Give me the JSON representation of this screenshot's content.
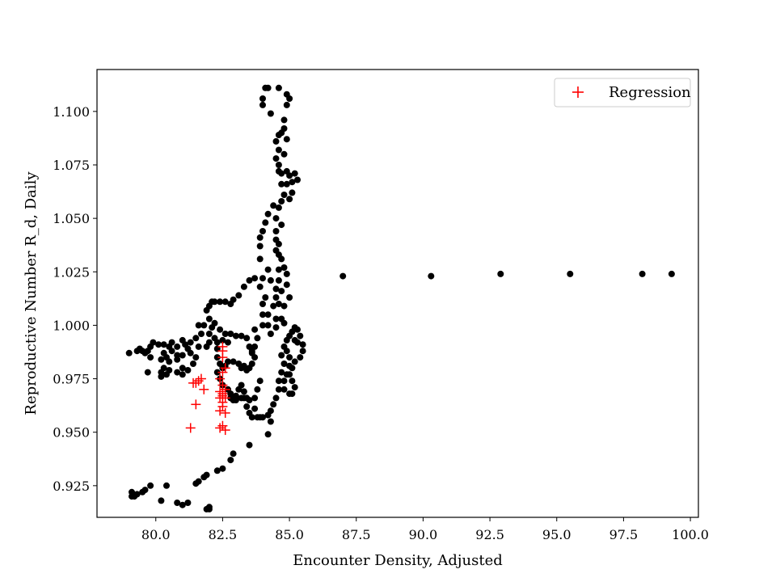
{
  "chart_data": {
    "type": "scatter",
    "title": "",
    "xlabel": "Encounter Density, Adjusted",
    "ylabel": "Reproductive Number R_d, Daily",
    "xlim": [
      77.8,
      100.3
    ],
    "ylim": [
      0.9102,
      1.1196
    ],
    "xticks": [
      "80.0",
      "82.5",
      "85.0",
      "87.5",
      "90.0",
      "92.5",
      "95.0",
      "97.5",
      "100.0"
    ],
    "yticks": [
      "0.925",
      "0.950",
      "0.975",
      "1.000",
      "1.025",
      "1.050",
      "1.075",
      "1.100"
    ],
    "grid": false,
    "legend_position": "top-right",
    "series": [
      {
        "name": "",
        "marker": "circle",
        "color": "#000000",
        "points": [
          [
            84.1,
            1.111
          ],
          [
            84.2,
            1.111
          ],
          [
            84.6,
            1.111
          ],
          [
            84.0,
            1.106
          ],
          [
            84.0,
            1.103
          ],
          [
            84.9,
            1.108
          ],
          [
            85.0,
            1.106
          ],
          [
            84.9,
            1.103
          ],
          [
            84.8,
            1.096
          ],
          [
            84.3,
            1.099
          ],
          [
            84.8,
            1.092
          ],
          [
            84.7,
            1.09
          ],
          [
            84.6,
            1.089
          ],
          [
            84.9,
            1.087
          ],
          [
            84.5,
            1.086
          ],
          [
            84.6,
            1.082
          ],
          [
            84.8,
            1.08
          ],
          [
            84.5,
            1.078
          ],
          [
            84.6,
            1.075
          ],
          [
            84.6,
            1.072
          ],
          [
            84.7,
            1.071
          ],
          [
            84.9,
            1.072
          ],
          [
            85.0,
            1.07
          ],
          [
            85.2,
            1.071
          ],
          [
            85.1,
            1.067
          ],
          [
            85.3,
            1.068
          ],
          [
            84.7,
            1.066
          ],
          [
            84.9,
            1.066
          ],
          [
            85.1,
            1.062
          ],
          [
            85.0,
            1.059
          ],
          [
            84.8,
            1.061
          ],
          [
            84.7,
            1.058
          ],
          [
            84.6,
            1.055
          ],
          [
            84.4,
            1.056
          ],
          [
            84.2,
            1.052
          ],
          [
            84.5,
            1.05
          ],
          [
            84.1,
            1.048
          ],
          [
            84.7,
            1.047
          ],
          [
            84.5,
            1.044
          ],
          [
            84.0,
            1.044
          ],
          [
            84.5,
            1.04
          ],
          [
            84.6,
            1.038
          ],
          [
            83.9,
            1.041
          ],
          [
            84.5,
            1.035
          ],
          [
            83.9,
            1.037
          ],
          [
            84.6,
            1.033
          ],
          [
            84.7,
            1.031
          ],
          [
            84.8,
            1.027
          ],
          [
            84.6,
            1.026
          ],
          [
            83.9,
            1.031
          ],
          [
            84.2,
            1.026
          ],
          [
            84.9,
            1.024
          ],
          [
            84.6,
            1.021
          ],
          [
            84.5,
            1.017
          ],
          [
            84.7,
            1.016
          ],
          [
            84.9,
            1.019
          ],
          [
            85.0,
            1.013
          ],
          [
            84.5,
            1.013
          ],
          [
            84.6,
            1.01
          ],
          [
            84.3,
            1.021
          ],
          [
            84.0,
            1.022
          ],
          [
            84.8,
            1.009
          ],
          [
            84.4,
            1.009
          ],
          [
            84.2,
            1.005
          ],
          [
            84.5,
            1.003
          ],
          [
            84.7,
            1.003
          ],
          [
            84.2,
            1.0
          ],
          [
            84.5,
            0.999
          ],
          [
            84.8,
            1.001
          ],
          [
            84.3,
            0.996
          ],
          [
            84.0,
            1.0
          ],
          [
            84.0,
            1.005
          ],
          [
            84.0,
            1.01
          ],
          [
            84.1,
            1.013
          ],
          [
            83.9,
            1.018
          ],
          [
            83.7,
            1.022
          ],
          [
            83.5,
            1.021
          ],
          [
            83.3,
            1.018
          ],
          [
            83.1,
            1.014
          ],
          [
            82.9,
            1.012
          ],
          [
            82.8,
            1.01
          ],
          [
            82.6,
            1.011
          ],
          [
            82.4,
            1.011
          ],
          [
            82.2,
            1.011
          ],
          [
            82.1,
            1.011
          ],
          [
            82.0,
            1.009
          ],
          [
            81.9,
            1.007
          ],
          [
            82.0,
            1.003
          ],
          [
            81.8,
            1.0
          ],
          [
            81.6,
            1.0
          ],
          [
            81.7,
            0.996
          ],
          [
            81.5,
            0.994
          ],
          [
            81.3,
            0.992
          ],
          [
            81.1,
            0.991
          ],
          [
            81.0,
            0.993
          ],
          [
            81.2,
            0.989
          ],
          [
            81.0,
            0.986
          ],
          [
            80.8,
            0.986
          ],
          [
            80.6,
            0.988
          ],
          [
            80.8,
            0.99
          ],
          [
            80.6,
            0.992
          ],
          [
            80.5,
            0.99
          ],
          [
            80.3,
            0.991
          ],
          [
            80.1,
            0.991
          ],
          [
            79.9,
            0.992
          ],
          [
            79.8,
            0.99
          ],
          [
            79.7,
            0.988
          ],
          [
            79.5,
            0.988
          ],
          [
            79.4,
            0.989
          ],
          [
            79.3,
            0.988
          ],
          [
            79.0,
            0.987
          ],
          [
            79.6,
            0.987
          ],
          [
            79.8,
            0.985
          ],
          [
            80.2,
            0.984
          ],
          [
            80.3,
            0.987
          ],
          [
            80.4,
            0.985
          ],
          [
            80.5,
            0.983
          ],
          [
            80.8,
            0.984
          ],
          [
            81.0,
            0.98
          ],
          [
            81.2,
            0.979
          ],
          [
            81.0,
            0.977
          ],
          [
            80.8,
            0.978
          ],
          [
            80.5,
            0.979
          ],
          [
            80.3,
            0.98
          ],
          [
            80.2,
            0.978
          ],
          [
            80.2,
            0.976
          ],
          [
            80.4,
            0.977
          ],
          [
            79.7,
            0.978
          ],
          [
            81.4,
            0.982
          ],
          [
            81.5,
            0.985
          ],
          [
            81.3,
            0.987
          ],
          [
            81.6,
            0.99
          ],
          [
            81.9,
            0.99
          ],
          [
            82.0,
            0.992
          ],
          [
            82.2,
            0.994
          ],
          [
            82.0,
            0.996
          ],
          [
            82.1,
            0.999
          ],
          [
            82.2,
            1.001
          ],
          [
            82.4,
            0.998
          ],
          [
            82.6,
            0.996
          ],
          [
            82.8,
            0.996
          ],
          [
            83.0,
            0.995
          ],
          [
            83.2,
            0.995
          ],
          [
            83.4,
            0.994
          ],
          [
            83.5,
            0.99
          ],
          [
            83.6,
            0.988
          ],
          [
            83.7,
            0.985
          ],
          [
            83.6,
            0.982
          ],
          [
            83.5,
            0.98
          ],
          [
            83.4,
            0.979
          ],
          [
            83.2,
            0.98
          ],
          [
            83.1,
            0.982
          ],
          [
            82.9,
            0.983
          ],
          [
            82.7,
            0.983
          ],
          [
            82.6,
            0.981
          ],
          [
            82.5,
            0.98
          ],
          [
            82.4,
            0.982
          ],
          [
            82.3,
            0.985
          ],
          [
            82.3,
            0.989
          ],
          [
            82.3,
            0.992
          ],
          [
            82.5,
            0.993
          ],
          [
            82.7,
            0.992
          ],
          [
            82.3,
            0.978
          ],
          [
            82.4,
            0.975
          ],
          [
            82.5,
            0.972
          ],
          [
            82.7,
            0.97
          ],
          [
            82.8,
            0.968
          ],
          [
            82.9,
            0.965
          ],
          [
            83.0,
            0.967
          ],
          [
            83.1,
            0.97
          ],
          [
            83.2,
            0.972
          ],
          [
            83.3,
            0.969
          ],
          [
            83.3,
            0.966
          ],
          [
            83.4,
            0.962
          ],
          [
            83.5,
            0.959
          ],
          [
            83.6,
            0.957
          ],
          [
            83.8,
            0.957
          ],
          [
            84.0,
            0.957
          ],
          [
            84.2,
            0.958
          ],
          [
            84.3,
            0.96
          ],
          [
            84.4,
            0.963
          ],
          [
            84.5,
            0.966
          ],
          [
            84.6,
            0.97
          ],
          [
            84.6,
            0.974
          ],
          [
            84.7,
            0.978
          ],
          [
            84.8,
            0.982
          ],
          [
            84.7,
            0.986
          ],
          [
            84.8,
            0.99
          ],
          [
            84.9,
            0.993
          ],
          [
            85.0,
            0.995
          ],
          [
            85.1,
            0.997
          ],
          [
            85.2,
            0.999
          ],
          [
            85.3,
            0.998
          ],
          [
            85.4,
            0.995
          ],
          [
            85.5,
            0.991
          ],
          [
            85.5,
            0.988
          ],
          [
            85.4,
            0.985
          ],
          [
            85.2,
            0.983
          ],
          [
            85.1,
            0.98
          ],
          [
            85.0,
            0.977
          ],
          [
            85.1,
            0.974
          ],
          [
            85.2,
            0.971
          ],
          [
            85.1,
            0.968
          ],
          [
            85.0,
            0.968
          ],
          [
            84.8,
            0.97
          ],
          [
            84.8,
            0.974
          ],
          [
            84.9,
            0.977
          ],
          [
            85.0,
            0.981
          ],
          [
            85.0,
            0.985
          ],
          [
            84.9,
            0.988
          ],
          [
            85.2,
            0.993
          ],
          [
            85.3,
            0.992
          ],
          [
            84.3,
            0.955
          ],
          [
            84.2,
            0.949
          ],
          [
            83.9,
            0.957
          ],
          [
            83.7,
            0.961
          ],
          [
            83.5,
            0.965
          ],
          [
            83.4,
            0.966
          ],
          [
            83.2,
            0.966
          ],
          [
            83.0,
            0.965
          ],
          [
            82.8,
            0.966
          ],
          [
            83.7,
            0.966
          ],
          [
            83.8,
            0.97
          ],
          [
            83.9,
            0.974
          ],
          [
            83.6,
            0.987
          ],
          [
            83.7,
            0.99
          ],
          [
            83.8,
            0.994
          ],
          [
            83.7,
            0.998
          ],
          [
            83.3,
            0.981
          ],
          [
            83.5,
            0.944
          ],
          [
            82.9,
            0.94
          ],
          [
            82.8,
            0.937
          ],
          [
            82.5,
            0.933
          ],
          [
            82.3,
            0.932
          ],
          [
            81.9,
            0.93
          ],
          [
            81.8,
            0.929
          ],
          [
            81.6,
            0.927
          ],
          [
            81.5,
            0.926
          ],
          [
            81.2,
            0.917
          ],
          [
            81.0,
            0.916
          ],
          [
            80.8,
            0.917
          ],
          [
            80.4,
            0.925
          ],
          [
            80.2,
            0.918
          ],
          [
            82.0,
            0.914
          ],
          [
            82.0,
            0.915
          ],
          [
            81.9,
            0.914
          ],
          [
            79.8,
            0.925
          ],
          [
            79.6,
            0.923
          ],
          [
            79.5,
            0.922
          ],
          [
            79.3,
            0.921
          ],
          [
            79.2,
            0.92
          ],
          [
            79.1,
            0.92
          ],
          [
            79.1,
            0.922
          ],
          [
            87.0,
            1.023
          ],
          [
            90.3,
            1.023
          ],
          [
            92.9,
            1.024
          ],
          [
            95.5,
            1.024
          ],
          [
            98.2,
            1.024
          ],
          [
            99.3,
            1.024
          ]
        ]
      },
      {
        "name": "Regression",
        "marker": "plus",
        "color": "#ff0000",
        "points": [
          [
            82.5,
            0.99
          ],
          [
            82.5,
            0.988
          ],
          [
            82.5,
            0.985
          ],
          [
            82.6,
            0.98
          ],
          [
            82.5,
            0.978
          ],
          [
            82.4,
            0.975
          ],
          [
            82.5,
            0.972
          ],
          [
            82.6,
            0.97
          ],
          [
            82.4,
            0.969
          ],
          [
            82.5,
            0.968
          ],
          [
            82.5,
            0.967
          ],
          [
            82.6,
            0.966
          ],
          [
            82.4,
            0.966
          ],
          [
            82.5,
            0.964
          ],
          [
            82.5,
            0.962
          ],
          [
            82.4,
            0.96
          ],
          [
            82.6,
            0.959
          ],
          [
            82.5,
            0.953
          ],
          [
            82.4,
            0.952
          ],
          [
            82.6,
            0.951
          ],
          [
            81.7,
            0.975
          ],
          [
            81.6,
            0.974
          ],
          [
            81.5,
            0.973
          ],
          [
            81.4,
            0.973
          ],
          [
            81.8,
            0.97
          ],
          [
            81.5,
            0.963
          ],
          [
            81.3,
            0.952
          ]
        ]
      }
    ]
  }
}
